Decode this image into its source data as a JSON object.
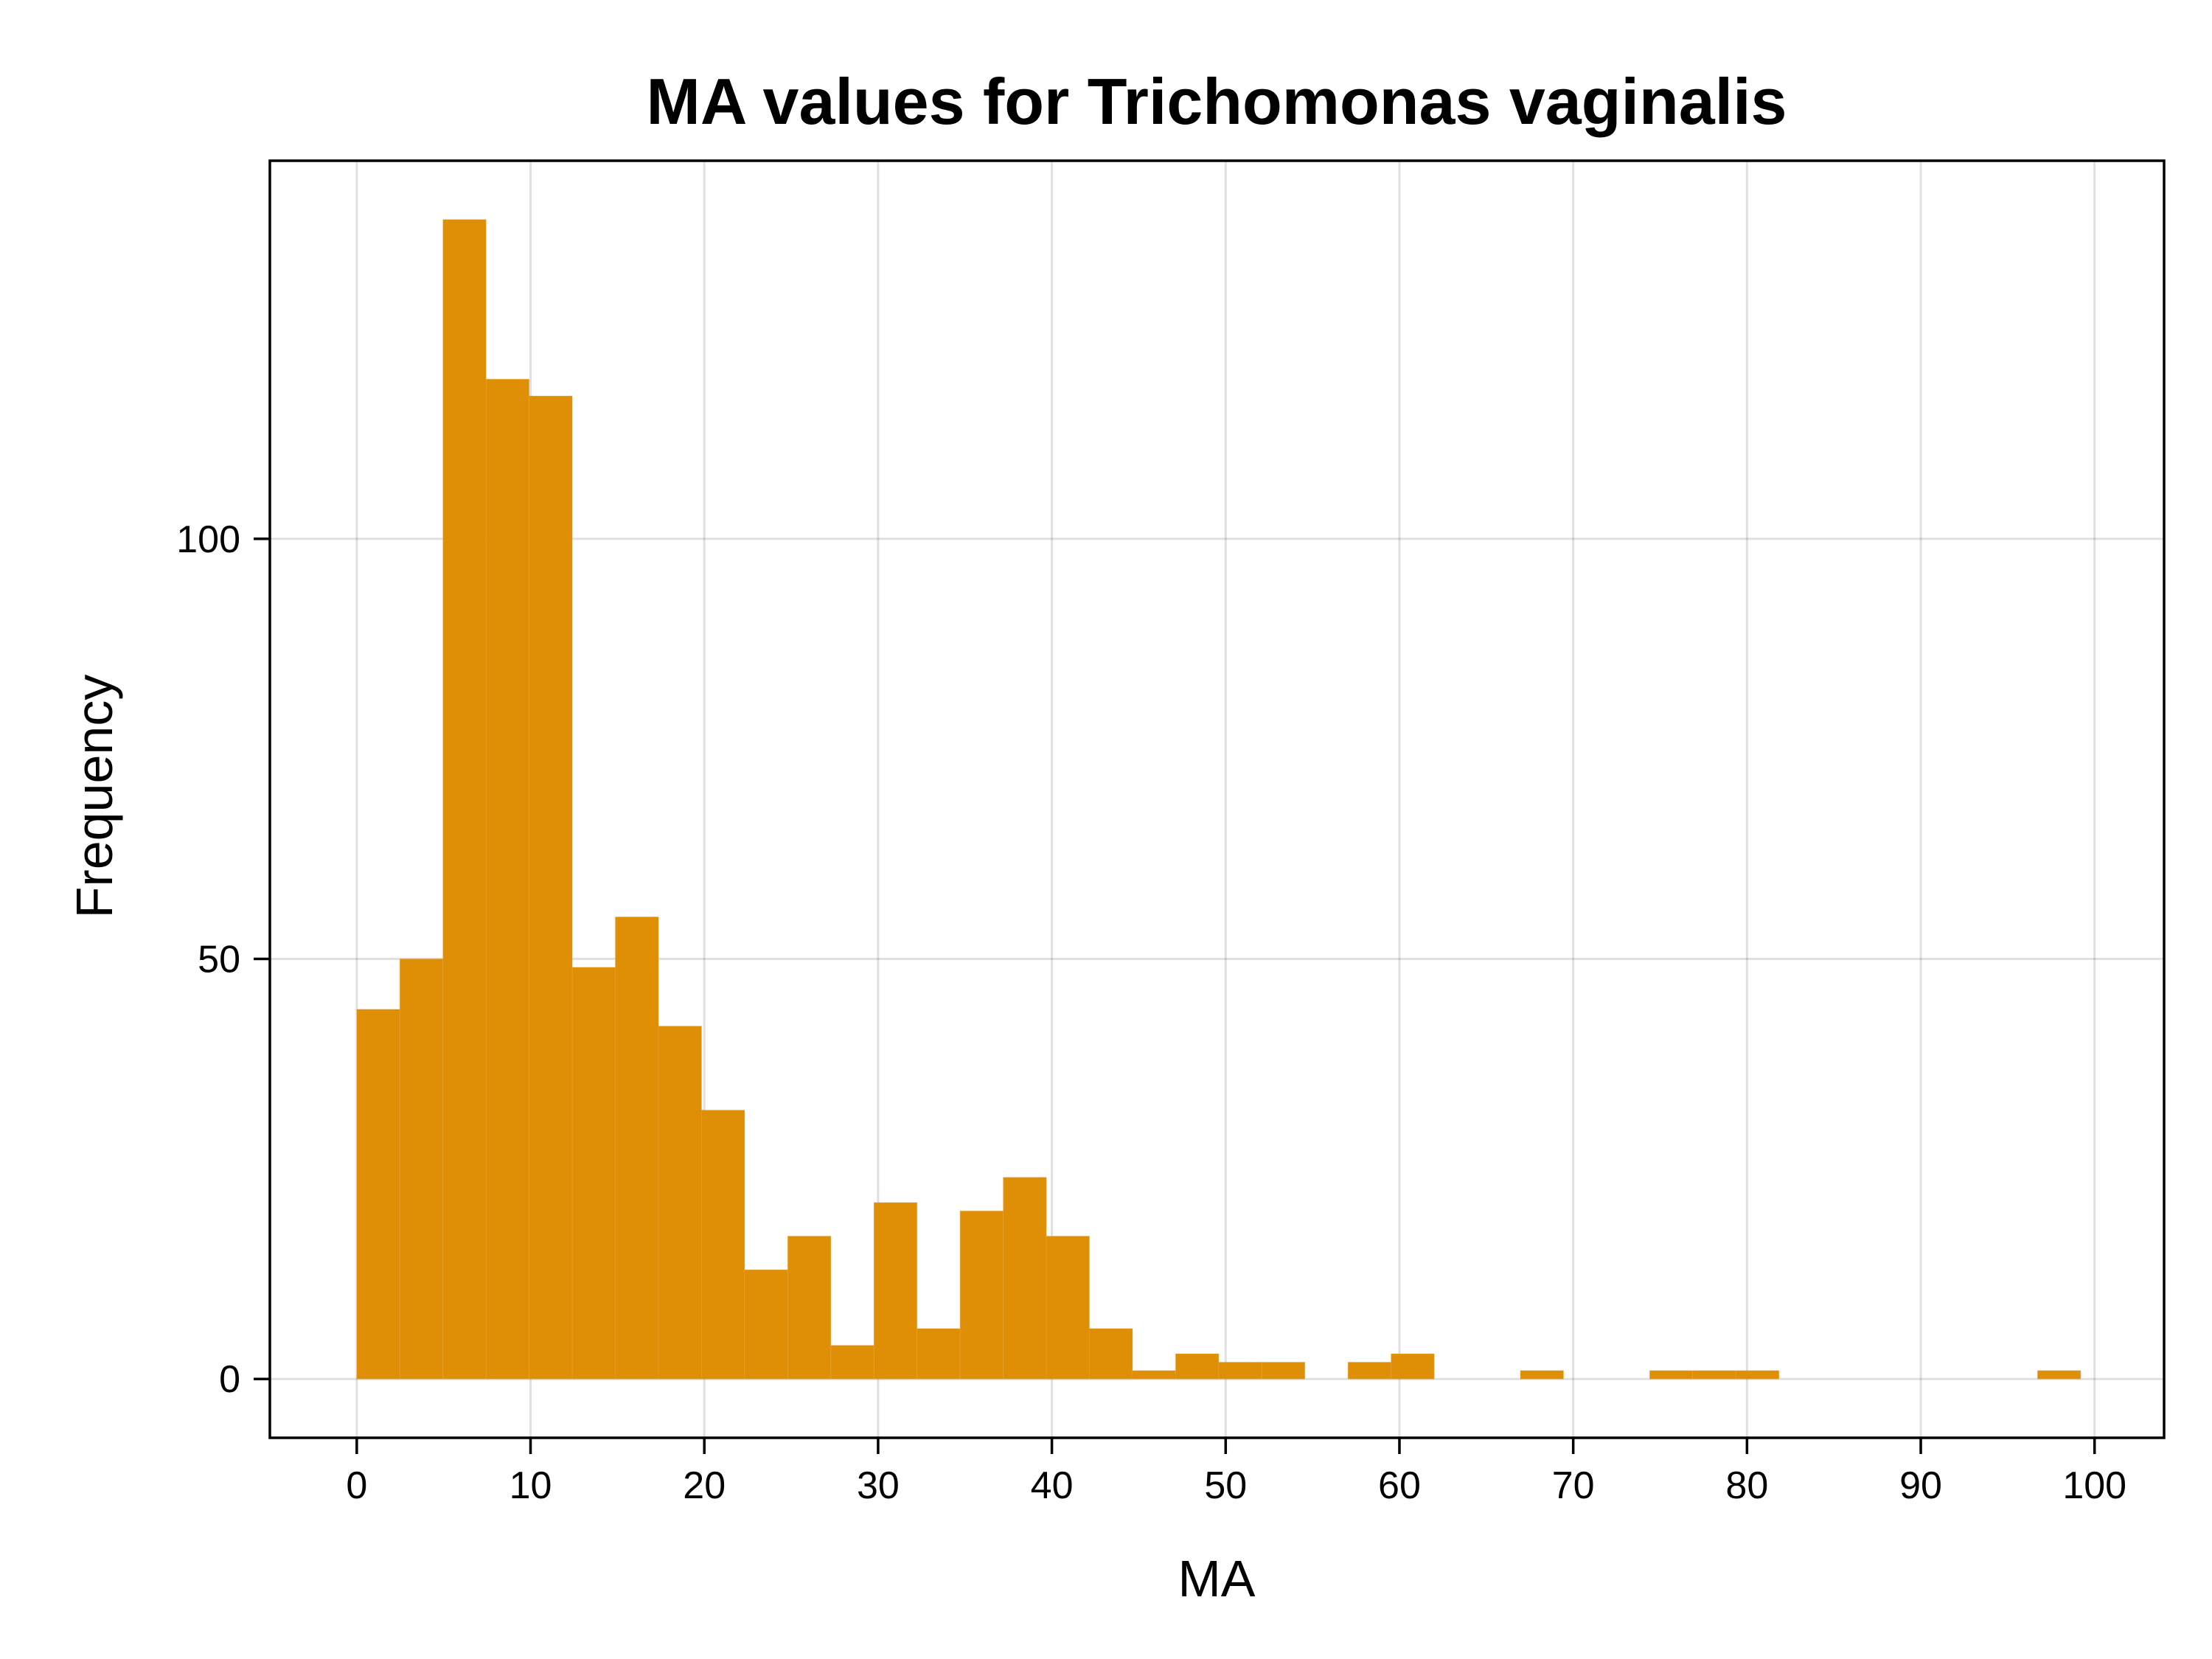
{
  "chart_data": {
    "type": "bar",
    "title": "MA values for Trichomonas vaginalis",
    "xlabel": "MA",
    "ylabel": "Frequency",
    "bar_color": "#de8f05",
    "bin_width": 2.48,
    "bin_start": 0,
    "xlim": [
      -5,
      104
    ],
    "ylim": [
      -7,
      145
    ],
    "xticks": [
      0,
      10,
      20,
      30,
      40,
      50,
      60,
      70,
      80,
      90,
      100
    ],
    "yticks": [
      0,
      50,
      100
    ],
    "grid": true,
    "legend": "none",
    "values": [
      44,
      50,
      138,
      119,
      117,
      49,
      55,
      42,
      32,
      13,
      17,
      4,
      21,
      6,
      20,
      24,
      17,
      6,
      1,
      3,
      2,
      2,
      0,
      2,
      3,
      0,
      0,
      1,
      0,
      0,
      1,
      1,
      1,
      0,
      0,
      0,
      0,
      0,
      0,
      1
    ]
  }
}
